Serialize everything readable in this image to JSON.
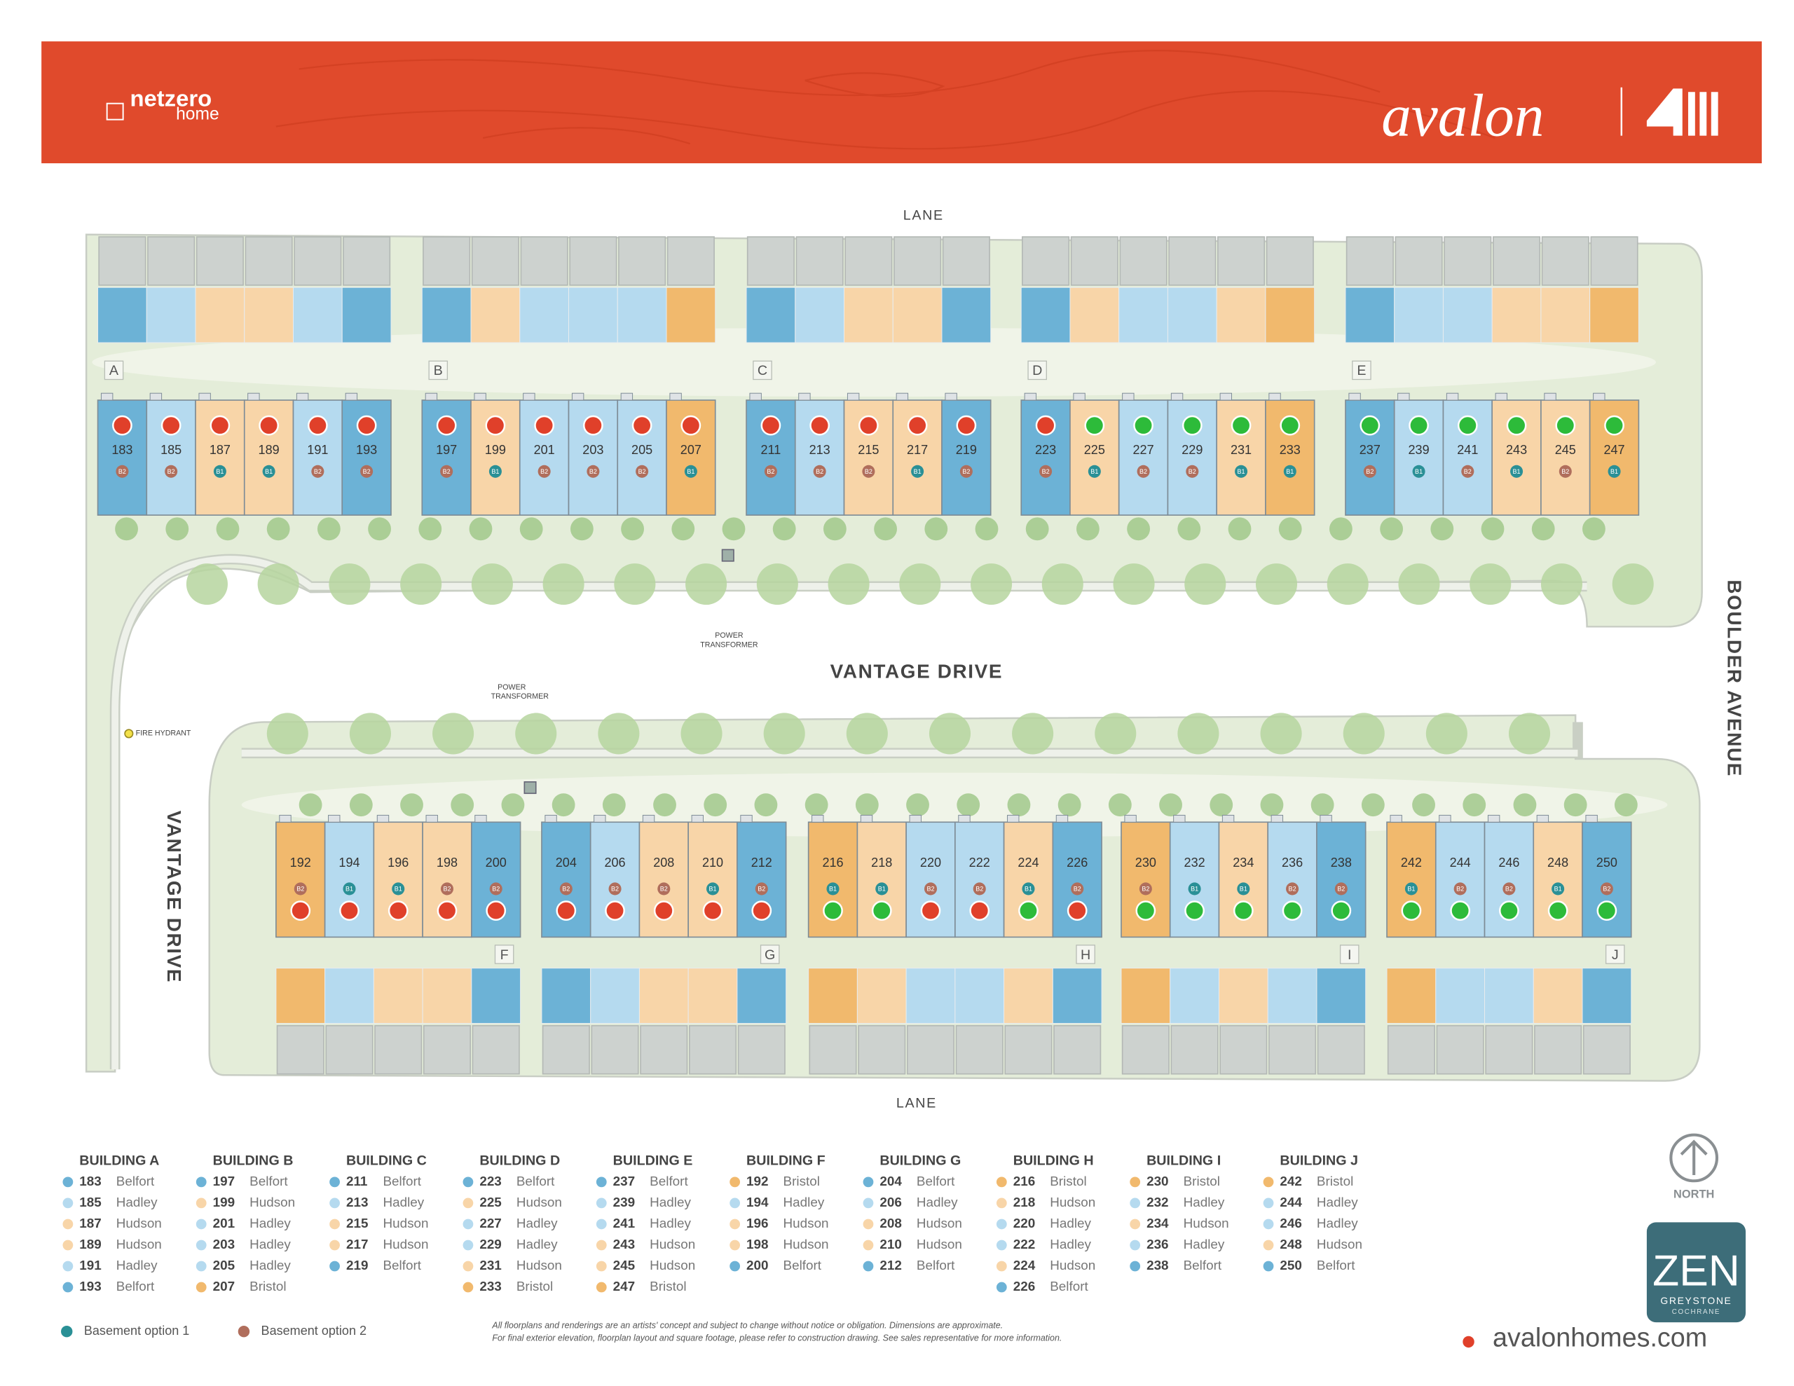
{
  "header": {
    "brand": "netzero",
    "brand_sub": "home",
    "builder": "avalon"
  },
  "labels": {
    "lane_top": "LANE",
    "lane_bottom": "LANE",
    "road_main": "VANTAGE DRIVE",
    "road_side": "VANTAGE DRIVE",
    "road_east": "BOULDER AVENUE",
    "transformer_1": [
      "POWER",
      "TRANSFORMER"
    ],
    "transformer_2": [
      "POWER",
      "TRANSFORMER"
    ],
    "hydrant": "FIRE HYDRANT"
  },
  "plan_colors": {
    "Belfort": "#6cb2d6",
    "Hadley": "#b5daef",
    "Hudson": "#f8d5a8",
    "Bristol": "#f1b96d"
  },
  "basement_colors": {
    "B1": "#2a9096",
    "B2": "#b06e5c"
  },
  "buildings": [
    {
      "letter": "A",
      "title": "BUILDING A",
      "units": [
        {
          "number": 183,
          "plan": "Belfort",
          "basement": "B2",
          "dot": "#e0402a"
        },
        {
          "number": 185,
          "plan": "Hadley",
          "basement": "B2",
          "dot": "#e0402a"
        },
        {
          "number": 187,
          "plan": "Hudson",
          "basement": "B1",
          "dot": "#e0402a"
        },
        {
          "number": 189,
          "plan": "Hudson",
          "basement": "B1",
          "dot": "#e0402a"
        },
        {
          "number": 191,
          "plan": "Hadley",
          "basement": "B2",
          "dot": "#e0402a"
        },
        {
          "number": 193,
          "plan": "Belfort",
          "basement": "B2",
          "dot": "#e0402a"
        }
      ]
    },
    {
      "letter": "B",
      "title": "BUILDING B",
      "units": [
        {
          "number": 197,
          "plan": "Belfort",
          "basement": "B2",
          "dot": "#e0402a"
        },
        {
          "number": 199,
          "plan": "Hudson",
          "basement": "B1",
          "dot": "#e0402a"
        },
        {
          "number": 201,
          "plan": "Hadley",
          "basement": "B2",
          "dot": "#e0402a"
        },
        {
          "number": 203,
          "plan": "Hadley",
          "basement": "B2",
          "dot": "#e0402a"
        },
        {
          "number": 205,
          "plan": "Hadley",
          "basement": "B2",
          "dot": "#e0402a"
        },
        {
          "number": 207,
          "plan": "Bristol",
          "basement": "B1",
          "dot": "#e0402a"
        }
      ]
    },
    {
      "letter": "C",
      "title": "BUILDING C",
      "units": [
        {
          "number": 211,
          "plan": "Belfort",
          "basement": "B2",
          "dot": "#e0402a"
        },
        {
          "number": 213,
          "plan": "Hadley",
          "basement": "B2",
          "dot": "#e0402a"
        },
        {
          "number": 215,
          "plan": "Hudson",
          "basement": "B2",
          "dot": "#e0402a"
        },
        {
          "number": 217,
          "plan": "Hudson",
          "basement": "B1",
          "dot": "#e0402a"
        },
        {
          "number": 219,
          "plan": "Belfort",
          "basement": "B2",
          "dot": "#e0402a"
        }
      ]
    },
    {
      "letter": "D",
      "title": "BUILDING D",
      "units": [
        {
          "number": 223,
          "plan": "Belfort",
          "basement": "B2",
          "dot": "#e0402a"
        },
        {
          "number": 225,
          "plan": "Hudson",
          "basement": "B1",
          "dot": "#2dbb3a"
        },
        {
          "number": 227,
          "plan": "Hadley",
          "basement": "B2",
          "dot": "#2dbb3a"
        },
        {
          "number": 229,
          "plan": "Hadley",
          "basement": "B2",
          "dot": "#2dbb3a"
        },
        {
          "number": 231,
          "plan": "Hudson",
          "basement": "B1",
          "dot": "#2dbb3a"
        },
        {
          "number": 233,
          "plan": "Bristol",
          "basement": "B1",
          "dot": "#2dbb3a"
        }
      ]
    },
    {
      "letter": "E",
      "title": "BUILDING E",
      "units": [
        {
          "number": 237,
          "plan": "Belfort",
          "basement": "B2",
          "dot": "#2dbb3a"
        },
        {
          "number": 239,
          "plan": "Hadley",
          "basement": "B1",
          "dot": "#2dbb3a"
        },
        {
          "number": 241,
          "plan": "Hadley",
          "basement": "B2",
          "dot": "#2dbb3a"
        },
        {
          "number": 243,
          "plan": "Hudson",
          "basement": "B1",
          "dot": "#2dbb3a"
        },
        {
          "number": 245,
          "plan": "Hudson",
          "basement": "B2",
          "dot": "#2dbb3a"
        },
        {
          "number": 247,
          "plan": "Bristol",
          "basement": "B1",
          "dot": "#2dbb3a"
        }
      ]
    },
    {
      "letter": "F",
      "title": "BUILDING F",
      "units": [
        {
          "number": 192,
          "plan": "Bristol",
          "basement": "B2",
          "dot": "#e0402a"
        },
        {
          "number": 194,
          "plan": "Hadley",
          "basement": "B1",
          "dot": "#e0402a"
        },
        {
          "number": 196,
          "plan": "Hudson",
          "basement": "B1",
          "dot": "#e0402a"
        },
        {
          "number": 198,
          "plan": "Hudson",
          "basement": "B2",
          "dot": "#e0402a"
        },
        {
          "number": 200,
          "plan": "Belfort",
          "basement": "B2",
          "dot": "#e0402a"
        }
      ]
    },
    {
      "letter": "G",
      "title": "BUILDING G",
      "units": [
        {
          "number": 204,
          "plan": "Belfort",
          "basement": "B2",
          "dot": "#e0402a"
        },
        {
          "number": 206,
          "plan": "Hadley",
          "basement": "B2",
          "dot": "#e0402a"
        },
        {
          "number": 208,
          "plan": "Hudson",
          "basement": "B2",
          "dot": "#e0402a"
        },
        {
          "number": 210,
          "plan": "Hudson",
          "basement": "B1",
          "dot": "#e0402a"
        },
        {
          "number": 212,
          "plan": "Belfort",
          "basement": "B2",
          "dot": "#e0402a"
        }
      ]
    },
    {
      "letter": "H",
      "title": "BUILDING H",
      "units": [
        {
          "number": 216,
          "plan": "Bristol",
          "basement": "B1",
          "dot": "#2dbb3a"
        },
        {
          "number": 218,
          "plan": "Hudson",
          "basement": "B1",
          "dot": "#2dbb3a"
        },
        {
          "number": 220,
          "plan": "Hadley",
          "basement": "B2",
          "dot": "#e0402a"
        },
        {
          "number": 222,
          "plan": "Hadley",
          "basement": "B2",
          "dot": "#e0402a"
        },
        {
          "number": 224,
          "plan": "Hudson",
          "basement": "B1",
          "dot": "#2dbb3a"
        },
        {
          "number": 226,
          "plan": "Belfort",
          "basement": "B2",
          "dot": "#e0402a"
        }
      ]
    },
    {
      "letter": "I",
      "title": "BUILDING I",
      "units": [
        {
          "number": 230,
          "plan": "Bristol",
          "basement": "B2",
          "dot": "#2dbb3a"
        },
        {
          "number": 232,
          "plan": "Hadley",
          "basement": "B1",
          "dot": "#2dbb3a"
        },
        {
          "number": 234,
          "plan": "Hudson",
          "basement": "B1",
          "dot": "#2dbb3a"
        },
        {
          "number": 236,
          "plan": "Hadley",
          "basement": "B2",
          "dot": "#2dbb3a"
        },
        {
          "number": 238,
          "plan": "Belfort",
          "basement": "B2",
          "dot": "#2dbb3a"
        }
      ]
    },
    {
      "letter": "J",
      "title": "BUILDING J",
      "units": [
        {
          "number": 242,
          "plan": "Bristol",
          "basement": "B1",
          "dot": "#2dbb3a"
        },
        {
          "number": 244,
          "plan": "Hadley",
          "basement": "B2",
          "dot": "#2dbb3a"
        },
        {
          "number": 246,
          "plan": "Hadley",
          "basement": "B2",
          "dot": "#2dbb3a"
        },
        {
          "number": 248,
          "plan": "Hudson",
          "basement": "B1",
          "dot": "#2dbb3a"
        },
        {
          "number": 250,
          "plan": "Belfort",
          "basement": "B2",
          "dot": "#2dbb3a"
        }
      ]
    }
  ],
  "basement_legend": [
    {
      "code": "B1",
      "label": "Basement option 1"
    },
    {
      "code": "B2",
      "label": "Basement option 2"
    }
  ],
  "disclaimer": [
    "All floorplans and renderings are an artists' concept and subject to change without notice or obligation. Dimensions are approximate.",
    "For final exterior elevation, floorplan layout and square footage, please refer to construction drawing. See sales representative for more information."
  ],
  "compass": "NORTH",
  "community": {
    "name": "ZEN",
    "area": "GREYSTONE",
    "town": "COCHRANE"
  },
  "website": "avalonhomes.com"
}
